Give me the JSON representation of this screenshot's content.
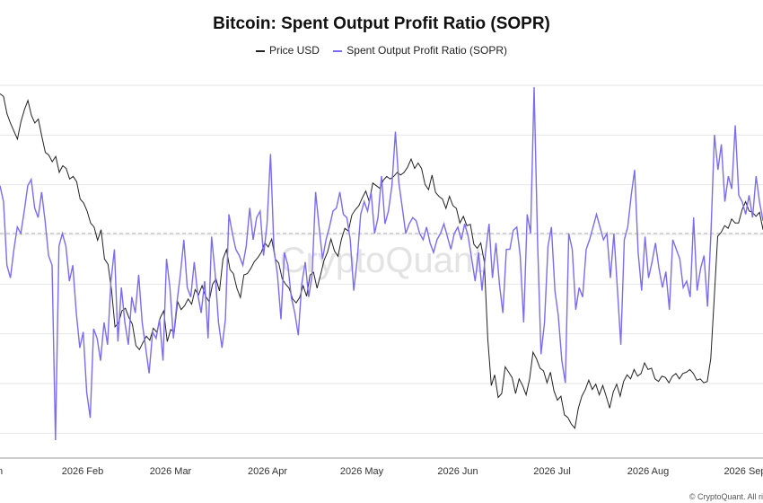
{
  "chart_data": {
    "type": "line",
    "title": "Bitcoin: Spent Output Profit Ratio (SOPR)",
    "watermark": "CryptoQuant",
    "footer": "© CryptoQuant. All ri",
    "x_tick_labels": [
      "n",
      "2026 Feb",
      "2026 Mar",
      "2026 Apr",
      "2026 May",
      "2026 Jun",
      "2026 Jul",
      "2026 Aug",
      "2026 Sep"
    ],
    "grid": true,
    "legend_position": "top-center",
    "sopr_reference_line": 1.0,
    "colors": {
      "price": "#222222",
      "sopr": "#7b6cf0",
      "grid": "#e6e6e6",
      "reference": "#b5b5b5",
      "watermark": "#e3e3e3"
    },
    "series": [
      {
        "name": "Price USD",
        "values": [
          74000,
          73800,
          72500,
          71800,
          71200,
          70600,
          71900,
          72800,
          73500,
          72400,
          71800,
          72100,
          70800,
          69600,
          69400,
          68900,
          69300,
          68100,
          68600,
          68400,
          67600,
          67800,
          67400,
          66100,
          65800,
          65200,
          64300,
          64000,
          63000,
          63800,
          61600,
          61200,
          59300,
          56500,
          56800,
          57700,
          57900,
          57200,
          56700,
          55100,
          54800,
          55300,
          55800,
          55500,
          56400,
          56100,
          57200,
          57700,
          55400,
          56300,
          56100,
          58400,
          57800,
          58100,
          58600,
          58200,
          59300,
          58900,
          59600,
          58800,
          58400,
          59700,
          60100,
          59200,
          61600,
          62300,
          60800,
          60500,
          59400,
          58700,
          60400,
          60500,
          60900,
          61400,
          61700,
          62100,
          62800,
          62500,
          63100,
          61600,
          61300,
          60100,
          59700,
          59400,
          58600,
          58300,
          58700,
          59600,
          58800,
          60400,
          60600,
          59400,
          60400,
          61500,
          62100,
          63100,
          62200,
          61800,
          63100,
          63900,
          63700,
          64900,
          65300,
          65600,
          66200,
          66700,
          65900,
          67300,
          67100,
          66900,
          67500,
          67800,
          67600,
          67800,
          68100,
          67900,
          68100,
          68500,
          69100,
          68400,
          68800,
          68400,
          67200,
          66800,
          67900,
          66600,
          66300,
          66100,
          65400,
          66300,
          65600,
          65400,
          64300,
          64800,
          64100,
          64200,
          62700,
          62400,
          62800,
          61400,
          55600,
          52100,
          52900,
          51200,
          51500,
          53500,
          53100,
          52700,
          51500,
          52600,
          52100,
          51400,
          52600,
          54600,
          54100,
          53400,
          53200,
          52300,
          53100,
          51700,
          51000,
          51300,
          49900,
          49700,
          49200,
          48900,
          50400,
          51300,
          51800,
          52500,
          51800,
          52200,
          51400,
          52100,
          51300,
          50400,
          51600,
          52200,
          51300,
          52400,
          52900,
          52600,
          53300,
          52800,
          53000,
          53800,
          53300,
          53400,
          52600,
          52400,
          52800,
          52700,
          52300,
          52800,
          53000,
          52600,
          53000,
          53100,
          53300,
          53000,
          52500,
          52600,
          52300,
          52400,
          54100,
          58700,
          63300,
          63600,
          64100,
          63900,
          64600,
          64300,
          64300,
          65300,
          65900,
          65200,
          65100,
          64800,
          65100,
          63800
        ],
        "dates_note": ""
      },
      {
        "name": "Spent Output Profit Ratio (SOPR)",
        "values": [
          1.015,
          1.01,
          0.99,
          0.986,
          0.995,
          1.002,
          1.0,
          1.007,
          1.015,
          1.017,
          1.008,
          1.005,
          1.013,
          1.004,
          0.993,
          0.99,
          0.935,
          0.996,
          1.0,
          0.996,
          0.985,
          0.99,
          0.975,
          0.964,
          0.969,
          0.95,
          0.942,
          0.97,
          0.967,
          0.96,
          0.972,
          0.965,
          0.985,
          0.995,
          0.966,
          0.983,
          0.972,
          0.965,
          0.98,
          0.975,
          0.987,
          0.972,
          0.964,
          0.956,
          0.969,
          0.967,
          0.973,
          0.96,
          0.992,
          0.983,
          0.967,
          0.978,
          0.987,
          0.998,
          0.983,
          0.98,
          0.991,
          0.981,
          0.975,
          0.985,
          0.967,
          0.999,
          0.988,
          0.972,
          0.964,
          0.973,
          1.006,
          1.0,
          0.995,
          0.993,
          0.99,
          0.996,
          1.008,
          0.998,
          1.005,
          1.007,
          0.993,
          1.003,
          1.025,
          0.995,
          0.987,
          0.973,
          0.994,
          0.99,
          0.98,
          0.975,
          0.968,
          0.984,
          0.991,
          0.98,
          0.987,
          1.013,
          1.002,
          0.992,
          0.998,
          1.002,
          1.007,
          1.008,
          1.013,
          1.006,
          1.005,
          0.998,
          0.982,
          0.992,
          1.006,
          1.01,
          1.007,
          1.013,
          1.0,
          1.005,
          1.018,
          1.003,
          1.007,
          1.015,
          1.032,
          1.016,
          1.008,
          1.0,
          1.003,
          1.005,
          1.004,
          1.0,
          0.998,
          1.002,
          0.997,
          0.994,
          0.998,
          1.0,
          1.003,
          0.999,
          0.995,
          1.0,
          1.002,
          0.998,
          1.003,
          0.999,
          0.992,
          0.985,
          0.994,
          0.982,
          0.994,
          1.003,
          0.986,
          0.997,
          0.984,
          0.975,
          0.995,
          0.995,
          1.001,
          1.002,
          0.993,
          0.972,
          1.006,
          1.0,
          1.046,
          0.997,
          0.962,
          0.972,
          0.996,
          1.002,
          0.982,
          0.974,
          0.96,
          0.953,
          1.0,
          0.995,
          0.976,
          0.983,
          0.98,
          0.995,
          0.998,
          1.002,
          1.006,
          1.002,
          0.998,
          1.0,
          0.986,
          1.0,
          0.983,
          0.965,
          0.998,
          1.002,
          1.012,
          1.02,
          0.994,
          0.982,
          0.999,
          0.986,
          0.991,
          0.997,
          0.989,
          0.983,
          0.988,
          0.976,
          0.998,
          0.995,
          0.992,
          0.983,
          0.985,
          0.98,
          1.005,
          0.982,
          0.989,
          0.993,
          0.977,
          1.0,
          1.031,
          1.02,
          1.028,
          1.01,
          1.018,
          1.014,
          1.034,
          1.012,
          1.01,
          1.006,
          1.012,
          1.005,
          1.018,
          1.01,
          1.004
        ]
      }
    ]
  }
}
